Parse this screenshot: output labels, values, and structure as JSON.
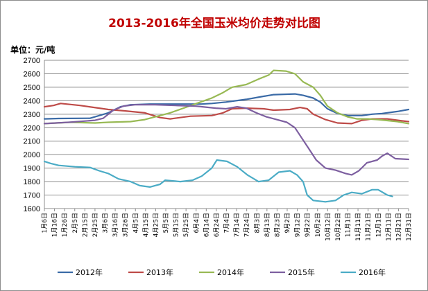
{
  "chart_data": {
    "type": "line",
    "title": "2013-2016年全国玉米均价走势对比图",
    "unit_label": "单位：元/吨",
    "ylim": [
      1600,
      2700
    ],
    "y_ticks": [
      1600,
      1700,
      1800,
      1900,
      2000,
      2100,
      2200,
      2300,
      2400,
      2500,
      2600,
      2700
    ],
    "grid": "horizontal",
    "legend_position": "bottom",
    "x_domain": [
      "01-06",
      "12-31"
    ],
    "categories": [
      "1月6日",
      "1月16日",
      "1月26日",
      "2月5日",
      "2月15日",
      "2月25日",
      "3月6日",
      "3月16日",
      "3月26日",
      "4月5日",
      "4月15日",
      "4月25日",
      "5月5日",
      "5月15日",
      "5月25日",
      "6月4日",
      "6月14日",
      "6月24日",
      "7月4日",
      "7月14日",
      "7月24日",
      "8月3日",
      "8月13日",
      "8月23日",
      "9月2日",
      "9月12日",
      "9月22日",
      "10月2日",
      "10月12日",
      "10月22日",
      "11月1日",
      "11月11日",
      "11月21日",
      "12月1日",
      "12月11日",
      "12月21日",
      "12月31日"
    ],
    "series": [
      {
        "name": "2012年",
        "color": "#3a6aa6",
        "points": [
          [
            "01-06",
            2265
          ],
          [
            "01-20",
            2268
          ],
          [
            "02-20",
            2270
          ],
          [
            "03-01",
            2290
          ],
          [
            "03-10",
            2310
          ],
          [
            "03-22",
            2355
          ],
          [
            "04-01",
            2370
          ],
          [
            "04-20",
            2375
          ],
          [
            "05-15",
            2375
          ],
          [
            "06-10",
            2375
          ],
          [
            "06-20",
            2380
          ],
          [
            "07-04",
            2390
          ],
          [
            "07-24",
            2410
          ],
          [
            "08-08",
            2430
          ],
          [
            "08-20",
            2445
          ],
          [
            "09-10",
            2450
          ],
          [
            "09-18",
            2440
          ],
          [
            "09-28",
            2420
          ],
          [
            "10-05",
            2390
          ],
          [
            "10-12",
            2340
          ],
          [
            "10-22",
            2305
          ],
          [
            "11-01",
            2290
          ],
          [
            "11-15",
            2290
          ],
          [
            "11-25",
            2300
          ],
          [
            "12-05",
            2305
          ],
          [
            "12-20",
            2320
          ],
          [
            "12-31",
            2335
          ]
        ]
      },
      {
        "name": "2013年",
        "color": "#be4b48",
        "points": [
          [
            "01-06",
            2355
          ],
          [
            "01-15",
            2365
          ],
          [
            "01-22",
            2380
          ],
          [
            "02-10",
            2365
          ],
          [
            "03-01",
            2345
          ],
          [
            "03-10",
            2335
          ],
          [
            "03-26",
            2325
          ],
          [
            "04-15",
            2310
          ],
          [
            "04-30",
            2275
          ],
          [
            "05-10",
            2265
          ],
          [
            "05-30",
            2285
          ],
          [
            "06-20",
            2290
          ],
          [
            "07-01",
            2310
          ],
          [
            "07-10",
            2340
          ],
          [
            "07-24",
            2345
          ],
          [
            "08-10",
            2340
          ],
          [
            "08-20",
            2330
          ],
          [
            "09-05",
            2335
          ],
          [
            "09-15",
            2350
          ],
          [
            "09-22",
            2340
          ],
          [
            "09-28",
            2300
          ],
          [
            "10-10",
            2260
          ],
          [
            "10-22",
            2235
          ],
          [
            "11-05",
            2230
          ],
          [
            "11-15",
            2255
          ],
          [
            "11-25",
            2265
          ],
          [
            "12-10",
            2265
          ],
          [
            "12-25",
            2250
          ],
          [
            "12-31",
            2245
          ]
        ]
      },
      {
        "name": "2014年",
        "color": "#98b954",
        "points": [
          [
            "01-06",
            2230
          ],
          [
            "02-01",
            2240
          ],
          [
            "02-25",
            2235
          ],
          [
            "03-10",
            2240
          ],
          [
            "04-01",
            2245
          ],
          [
            "04-15",
            2260
          ],
          [
            "04-25",
            2280
          ],
          [
            "05-10",
            2310
          ],
          [
            "05-25",
            2350
          ],
          [
            "06-05",
            2380
          ],
          [
            "06-20",
            2420
          ],
          [
            "07-01",
            2460
          ],
          [
            "07-10",
            2500
          ],
          [
            "07-24",
            2520
          ],
          [
            "08-05",
            2560
          ],
          [
            "08-15",
            2590
          ],
          [
            "08-20",
            2625
          ],
          [
            "09-01",
            2620
          ],
          [
            "09-10",
            2600
          ],
          [
            "09-18",
            2540
          ],
          [
            "09-28",
            2500
          ],
          [
            "10-05",
            2440
          ],
          [
            "10-12",
            2360
          ],
          [
            "10-22",
            2310
          ],
          [
            "11-01",
            2280
          ],
          [
            "11-10",
            2265
          ],
          [
            "11-21",
            2265
          ],
          [
            "12-01",
            2260
          ],
          [
            "12-20",
            2245
          ],
          [
            "12-31",
            2230
          ]
        ]
      },
      {
        "name": "2015年",
        "color": "#7d5fa0",
        "points": [
          [
            "01-06",
            2230
          ],
          [
            "01-30",
            2240
          ],
          [
            "02-25",
            2255
          ],
          [
            "03-05",
            2270
          ],
          [
            "03-15",
            2330
          ],
          [
            "03-25",
            2360
          ],
          [
            "04-05",
            2370
          ],
          [
            "04-25",
            2370
          ],
          [
            "05-15",
            2365
          ],
          [
            "06-04",
            2360
          ],
          [
            "06-24",
            2345
          ],
          [
            "07-04",
            2340
          ],
          [
            "07-15",
            2355
          ],
          [
            "07-24",
            2345
          ],
          [
            "08-03",
            2310
          ],
          [
            "08-13",
            2280
          ],
          [
            "08-23",
            2260
          ],
          [
            "09-02",
            2240
          ],
          [
            "09-10",
            2200
          ],
          [
            "09-17",
            2120
          ],
          [
            "09-24",
            2040
          ],
          [
            "10-01",
            1960
          ],
          [
            "10-10",
            1900
          ],
          [
            "10-20",
            1885
          ],
          [
            "10-30",
            1860
          ],
          [
            "11-05",
            1850
          ],
          [
            "11-12",
            1880
          ],
          [
            "11-20",
            1940
          ],
          [
            "11-30",
            1960
          ],
          [
            "12-05",
            1990
          ],
          [
            "12-10",
            2010
          ],
          [
            "12-18",
            1970
          ],
          [
            "12-31",
            1965
          ]
        ]
      },
      {
        "name": "2016年",
        "color": "#4bacc6",
        "points": [
          [
            "01-06",
            1950
          ],
          [
            "01-12",
            1935
          ],
          [
            "01-20",
            1920
          ],
          [
            "02-05",
            1910
          ],
          [
            "02-20",
            1905
          ],
          [
            "03-01",
            1880
          ],
          [
            "03-10",
            1860
          ],
          [
            "03-20",
            1820
          ],
          [
            "04-01",
            1800
          ],
          [
            "04-10",
            1770
          ],
          [
            "04-20",
            1760
          ],
          [
            "04-30",
            1780
          ],
          [
            "05-05",
            1810
          ],
          [
            "05-20",
            1800
          ],
          [
            "06-01",
            1810
          ],
          [
            "06-10",
            1840
          ],
          [
            "06-20",
            1900
          ],
          [
            "06-25",
            1960
          ],
          [
            "07-05",
            1950
          ],
          [
            "07-15",
            1910
          ],
          [
            "07-25",
            1850
          ],
          [
            "08-05",
            1800
          ],
          [
            "08-15",
            1810
          ],
          [
            "08-25",
            1870
          ],
          [
            "09-05",
            1880
          ],
          [
            "09-12",
            1850
          ],
          [
            "09-18",
            1800
          ],
          [
            "09-22",
            1700
          ],
          [
            "09-28",
            1660
          ],
          [
            "10-10",
            1650
          ],
          [
            "10-20",
            1660
          ],
          [
            "10-28",
            1700
          ],
          [
            "11-05",
            1720
          ],
          [
            "11-15",
            1710
          ],
          [
            "11-25",
            1740
          ],
          [
            "12-01",
            1740
          ],
          [
            "12-10",
            1700
          ],
          [
            "12-15",
            1690
          ]
        ]
      }
    ]
  }
}
